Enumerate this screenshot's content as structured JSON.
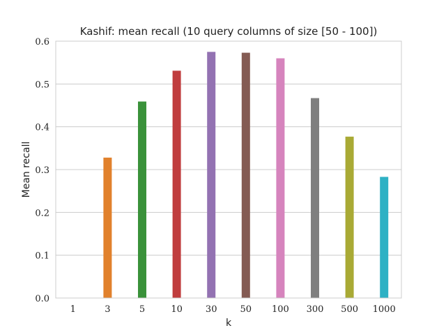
{
  "chart_data": {
    "type": "bar",
    "title": "Kashif: mean recall (10 query columns of size [50 - 100])",
    "xlabel": "k",
    "ylabel": "Mean recall",
    "categories": [
      "1",
      "3",
      "5",
      "10",
      "30",
      "50",
      "100",
      "300",
      "500",
      "1000"
    ],
    "values": [
      0.0,
      0.328,
      0.459,
      0.531,
      0.575,
      0.573,
      0.56,
      0.467,
      0.377,
      0.283
    ],
    "colors": [
      "#1f77b4",
      "#e1812c",
      "#3a923a",
      "#c03d3e",
      "#9372b2",
      "#845b53",
      "#d684bd",
      "#7f7f7f",
      "#a9aa35",
      "#2eb1c4"
    ],
    "ylim": [
      0,
      0.6
    ],
    "yticks": [
      "0.0",
      "0.1",
      "0.2",
      "0.3",
      "0.4",
      "0.5",
      "0.6"
    ],
    "grid": true,
    "legend": "none"
  }
}
